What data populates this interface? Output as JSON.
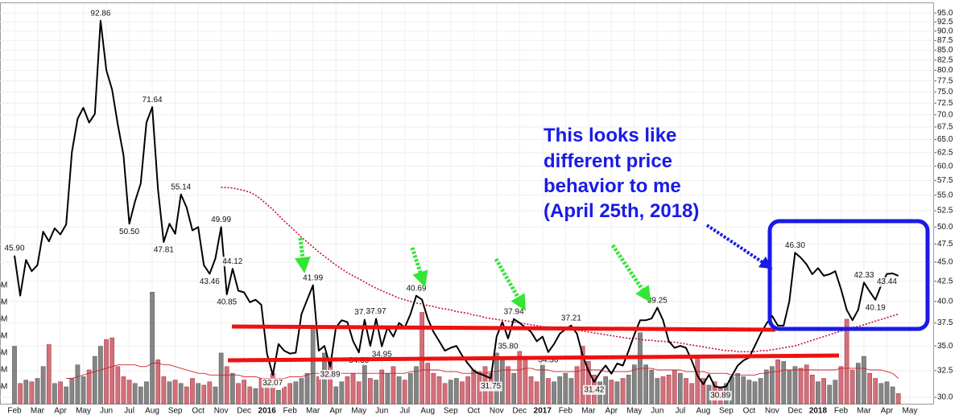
{
  "chart_data": {
    "type": "line",
    "log": true,
    "grid": true,
    "ylim": [
      29.43,
      96.9
    ],
    "yticks": [
      {
        "value": 30,
        "label": "30.0"
      },
      32.5,
      {
        "value": 35,
        "label": "35.0"
      },
      37.5,
      {
        "value": 40,
        "label": "40.0"
      },
      42.5,
      {
        "value": 45,
        "label": "45.0"
      },
      47.5,
      {
        "value": 50,
        "label": "50.0"
      },
      52.5,
      {
        "value": 55,
        "label": "55.0"
      },
      57.5,
      {
        "value": 60,
        "label": "60.0"
      },
      62.5,
      {
        "value": 65,
        "label": "65.0"
      },
      67.5,
      {
        "value": 70,
        "label": "70.0"
      },
      72.5,
      {
        "value": 75,
        "label": "75.0"
      },
      77.5,
      {
        "value": 80,
        "label": "80.0"
      },
      82.5,
      {
        "value": 85,
        "label": "85.0"
      },
      87.5,
      {
        "value": 90,
        "label": "90.0"
      },
      92.5,
      {
        "value": 95,
        "label": "95.0"
      }
    ],
    "y2lim": [
      0,
      23.5
    ],
    "y2ticks": [
      {
        "value": 1,
        "label": "M"
      },
      {
        "value": 2,
        "label": "M"
      },
      {
        "value": 3,
        "label": "M"
      },
      {
        "value": 4,
        "label": "M"
      },
      {
        "value": 5,
        "label": "M"
      },
      {
        "value": 6,
        "label": "M"
      },
      {
        "value": 7,
        "label": "M"
      }
    ],
    "categories": [
      "Feb",
      null,
      null,
      null,
      "Mar",
      null,
      null,
      null,
      "Apr",
      null,
      null,
      null,
      "May",
      null,
      null,
      null,
      "Jun",
      null,
      null,
      null,
      "Jul",
      null,
      null,
      null,
      "Aug",
      null,
      null,
      null,
      "Sep",
      null,
      null,
      null,
      "Oct",
      null,
      null,
      null,
      "Nov",
      null,
      null,
      null,
      "Dec",
      null,
      null,
      null,
      "2016",
      null,
      null,
      null,
      "Feb",
      null,
      null,
      null,
      "Mar",
      null,
      null,
      null,
      "Apr",
      null,
      null,
      null,
      "May",
      null,
      null,
      null,
      "Jun",
      null,
      null,
      null,
      "Jul",
      null,
      null,
      null,
      "Aug",
      null,
      null,
      null,
      "Sep",
      null,
      null,
      null,
      "Oct",
      null,
      null,
      null,
      "Nov",
      null,
      null,
      null,
      "Dec",
      null,
      null,
      null,
      "2017",
      null,
      null,
      null,
      "Feb",
      null,
      null,
      null,
      "Mar",
      null,
      null,
      null,
      "Apr",
      null,
      null,
      null,
      "May",
      null,
      null,
      null,
      "Jun",
      null,
      null,
      null,
      "Jul",
      null,
      null,
      null,
      "Aug",
      null,
      null,
      null,
      "Sep",
      null,
      null,
      null,
      "Oct",
      null,
      null,
      null,
      "Nov",
      null,
      null,
      null,
      "Dec",
      null,
      null,
      null,
      "2018",
      null,
      null,
      null,
      "Feb",
      null,
      null,
      null,
      "Mar",
      null,
      null,
      null,
      "Apr",
      null,
      null,
      null,
      "May"
    ],
    "series": [
      {
        "type": "line",
        "color": "#000000",
        "width": 2,
        "values": [
          45.9,
          40.7,
          45.3,
          43.8,
          44.6,
          49.3,
          47.9,
          49.8,
          48.9,
          50.4,
          62.6,
          69.2,
          71.5,
          68.4,
          70.2,
          92.86,
          80,
          75.5,
          68,
          62,
          50.5,
          54,
          57,
          68.4,
          71.64,
          56,
          47.81,
          50.5,
          49,
          55.14,
          53,
          49.5,
          50,
          44.6,
          43.46,
          45.5,
          49.99,
          40.85,
          44.12,
          41.3,
          41.1,
          39.9,
          40.2,
          39.6,
          34.2,
          32.07,
          35.2,
          34.5,
          34.2,
          34.3,
          38.5,
          40.2,
          41.99,
          34.5,
          35,
          32.89,
          37,
          37.8,
          37.6,
          35.5,
          34.33,
          37.86,
          35,
          37.97,
          34.95,
          37,
          36,
          37.5,
          37,
          38.5,
          40.69,
          40.2,
          38,
          36.5,
          35.5,
          34.5,
          34.8,
          35,
          34,
          33.2,
          32.5,
          32.2,
          32,
          31.75,
          36,
          37.6,
          35.8,
          37.94,
          37.5,
          37,
          36.5,
          35.5,
          36,
          34.36,
          35.2,
          36.3,
          36.8,
          37.21,
          36.3,
          34,
          32.5,
          31.42,
          32.3,
          33,
          32.2,
          33.2,
          33,
          34.5,
          36.2,
          37.8,
          37.8,
          38,
          39.25,
          37.8,
          35.5,
          34.8,
          35,
          34.8,
          33.5,
          32,
          31.2,
          32.1,
          31,
          30.89,
          31,
          32,
          33,
          33.5,
          33.8,
          35,
          36.3,
          37.4,
          38.3,
          37.2,
          37.2,
          40,
          46.3,
          45.6,
          44.7,
          43.4,
          44.2,
          43.2,
          43.4,
          43.8,
          41.5,
          39,
          37.8,
          39,
          42.33,
          41.2,
          40.19,
          42,
          43.44,
          43.5,
          43.2,
          null,
          null
        ],
        "value_labels": [
          "45.90",
          null,
          null,
          null,
          null,
          null,
          null,
          null,
          null,
          null,
          null,
          null,
          null,
          null,
          null,
          "92.86",
          null,
          null,
          null,
          null,
          "50.50",
          null,
          null,
          null,
          "71.64",
          null,
          "47.81",
          null,
          null,
          "55.14",
          null,
          null,
          null,
          null,
          "43.46",
          null,
          "49.99",
          "40.85",
          "44.12",
          null,
          null,
          null,
          null,
          null,
          null,
          "32.07",
          null,
          null,
          null,
          null,
          null,
          null,
          "41.99",
          null,
          null,
          "32.89",
          null,
          null,
          null,
          null,
          "34.33",
          "37.86",
          null,
          "37.97",
          "34.95",
          null,
          null,
          null,
          null,
          null,
          "40.69",
          null,
          null,
          null,
          null,
          null,
          null,
          null,
          null,
          null,
          null,
          null,
          null,
          "31.75",
          null,
          null,
          "35.80",
          "37.94",
          null,
          null,
          null,
          null,
          null,
          "34.36",
          null,
          null,
          null,
          "37.21",
          null,
          null,
          null,
          "31.42",
          null,
          null,
          null,
          null,
          null,
          null,
          null,
          null,
          null,
          null,
          "39.25",
          null,
          null,
          null,
          null,
          null,
          null,
          null,
          null,
          null,
          null,
          "30.89",
          null,
          null,
          null,
          null,
          null,
          null,
          null,
          null,
          null,
          null,
          null,
          null,
          "46.30",
          null,
          null,
          null,
          null,
          null,
          null,
          null,
          null,
          null,
          null,
          null,
          "42.33",
          null,
          "40.19",
          null,
          "43.44",
          null,
          null,
          null,
          null
        ]
      },
      {
        "type": "line",
        "color": "#c8102e",
        "width": 1.6,
        "style": "dotted",
        "values": [
          null,
          null,
          null,
          null,
          null,
          null,
          null,
          null,
          null,
          null,
          null,
          null,
          null,
          null,
          null,
          null,
          null,
          null,
          null,
          null,
          null,
          null,
          null,
          null,
          null,
          null,
          null,
          null,
          null,
          null,
          null,
          null,
          null,
          null,
          null,
          null,
          56.3,
          56.3,
          56.2,
          56.0,
          55.8,
          55.5,
          55.0,
          54.3,
          53.5,
          52.7,
          51.8,
          50.9,
          50.1,
          49.3,
          48.5,
          47.8,
          47.1,
          46.4,
          45.8,
          45.2,
          44.6,
          44.1,
          43.6,
          43.2,
          42.8,
          42.4,
          42.0,
          41.6,
          41.3,
          41.0,
          40.7,
          40.4,
          40.2,
          40.0,
          39.8,
          39.7,
          39.5,
          39.4,
          39.2,
          39.1,
          39.0,
          38.8,
          38.7,
          38.6,
          38.4,
          38.3,
          38.1,
          38.0,
          37.9,
          37.8,
          37.7,
          37.6,
          37.5,
          37.4,
          37.3,
          37.2,
          37.1,
          37.0,
          37.0,
          36.9,
          36.8,
          36.8,
          36.7,
          36.6,
          36.5,
          36.4,
          36.3,
          36.2,
          36.1,
          36.0,
          35.9,
          35.8,
          35.8,
          35.7,
          35.6,
          35.6,
          35.5,
          35.5,
          35.4,
          35.4,
          35.3,
          35.2,
          35.1,
          35.0,
          34.9,
          34.8,
          34.7,
          34.6,
          34.5,
          34.5,
          34.4,
          34.4,
          34.4,
          34.4,
          34.5,
          34.5,
          34.6,
          34.7,
          34.8,
          34.9,
          35.0,
          35.2,
          35.4,
          35.6,
          35.8,
          36.0,
          36.2,
          36.4,
          36.6,
          36.8,
          37.0,
          37.1,
          37.3,
          37.5,
          37.7,
          37.9,
          38.1,
          38.3,
          38.5,
          null,
          null
        ]
      },
      {
        "type": "bar",
        "axis": "y2",
        "up_color": "#858585",
        "down_color": "#d2707a",
        "values": [
          3.4,
          1.2,
          1.4,
          1.3,
          1.5,
          2.2,
          3.5,
          1.2,
          1.3,
          1.0,
          1.5,
          2.3,
          1.6,
          2.0,
          2.8,
          3.4,
          3.8,
          3.9,
          2.2,
          1.6,
          1.4,
          1.2,
          1.0,
          1.3,
          6.6,
          2.6,
          1.6,
          1.3,
          1.4,
          1.2,
          1.0,
          1.5,
          1.2,
          1.1,
          1.3,
          1.0,
          3.0,
          2.2,
          1.8,
          1.2,
          1.4,
          1.0,
          0.9,
          1.5,
          1.3,
          1.8,
          0.8,
          1.0,
          1.2,
          1.3,
          1.5,
          1.8,
          4.6,
          1.6,
          3.0,
          2.6,
          1.0,
          1.3,
          1.6,
          1.8,
          1.3,
          2.4,
          1.5,
          1.4,
          2.0,
          1.8,
          2.2,
          1.6,
          1.4,
          1.8,
          2.2,
          5.4,
          2.4,
          1.8,
          1.6,
          1.2,
          1.4,
          1.5,
          1.3,
          1.6,
          2.0,
          1.9,
          2.2,
          1.8,
          3.0,
          2.6,
          2.2,
          1.8,
          3.1,
          2.6,
          1.6,
          1.3,
          2.4,
          1.5,
          1.3,
          1.6,
          1.8,
          1.5,
          2.2,
          3.4,
          2.5,
          1.7,
          1.3,
          1.6,
          1.4,
          1.3,
          1.5,
          1.7,
          2.3,
          4.2,
          2.3,
          2.0,
          1.5,
          1.6,
          1.7,
          2.0,
          1.8,
          1.5,
          1.2,
          2.8,
          1.5,
          1.1,
          1.3,
          1.0,
          1.2,
          1.6,
          1.8,
          1.6,
          1.4,
          1.3,
          1.5,
          2.0,
          2.2,
          2.6,
          2.5,
          2.0,
          2.2,
          2.1,
          2.3,
          1.7,
          1.3,
          1.5,
          1.1,
          1.4,
          2.2,
          5.0,
          2.0,
          2.4,
          2.8,
          1.8,
          1.5,
          1.2,
          1.3,
          1.0,
          0.6,
          null,
          null
        ]
      },
      {
        "type": "line",
        "axis": "y2",
        "color": "#d0202a",
        "width": 0.9,
        "values": [
          null,
          null,
          null,
          null,
          null,
          null,
          null,
          null,
          null,
          1.5,
          1.5,
          1.6,
          1.7,
          1.8,
          1.9,
          2.0,
          2.1,
          2.2,
          2.3,
          2.3,
          2.3,
          2.3,
          2.2,
          2.2,
          2.4,
          2.4,
          2.3,
          2.3,
          2.2,
          2.1,
          2.0,
          1.9,
          1.8,
          1.8,
          1.7,
          1.7,
          1.7,
          1.7,
          1.7,
          1.7,
          1.6,
          1.6,
          1.6,
          1.5,
          1.5,
          1.5,
          1.5,
          1.5,
          1.6,
          1.6,
          1.6,
          1.7,
          1.8,
          1.8,
          1.9,
          1.9,
          1.9,
          1.8,
          1.8,
          1.8,
          1.8,
          1.8,
          1.8,
          1.8,
          1.8,
          1.8,
          1.8,
          1.8,
          1.8,
          1.9,
          1.9,
          2.0,
          2.0,
          2.0,
          2.0,
          1.9,
          1.9,
          1.9,
          1.8,
          1.8,
          1.8,
          1.8,
          1.8,
          1.9,
          1.9,
          2.0,
          2.0,
          2.0,
          2.0,
          2.1,
          2.1,
          2.0,
          2.0,
          2.0,
          1.9,
          1.9,
          1.9,
          1.9,
          1.9,
          2.0,
          2.0,
          2.0,
          2.0,
          1.9,
          1.9,
          1.9,
          1.9,
          1.9,
          2.0,
          2.1,
          2.1,
          2.1,
          2.0,
          2.0,
          2.0,
          2.0,
          2.0,
          1.9,
          1.9,
          1.9,
          1.9,
          1.8,
          1.8,
          1.8,
          1.8,
          1.7,
          1.7,
          1.7,
          1.7,
          1.7,
          1.8,
          1.8,
          1.9,
          1.9,
          2.0,
          2.0,
          2.0,
          2.0,
          2.0,
          2.0,
          2.0,
          2.0,
          2.0,
          2.0,
          2.1,
          2.1,
          2.1,
          2.1,
          2.1,
          2.0,
          2.0,
          2.0,
          1.9,
          1.8,
          1.5,
          null,
          null
        ]
      }
    ],
    "annotation_lines": [
      "This looks like",
      "different price",
      "behavior to me",
      "(April 25th, 2018)"
    ]
  }
}
